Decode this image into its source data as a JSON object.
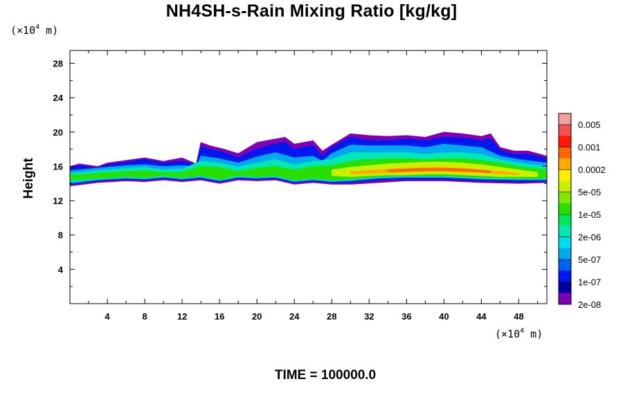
{
  "chart_data": {
    "type": "heatmap",
    "title": "NH4SH-s-Rain Mixing Ratio [kg/kg]",
    "xlabel": "",
    "ylabel": "Height",
    "x_unit": {
      "prefix": "(×10",
      "exp": "4",
      "suffix": " m)"
    },
    "y_unit": {
      "prefix": "(×10",
      "exp": "4",
      "suffix": " m)"
    },
    "xlim": [
      0,
      51
    ],
    "ylim": [
      0,
      29.5
    ],
    "x_ticks": [
      4,
      8,
      12,
      16,
      20,
      24,
      28,
      32,
      36,
      40,
      44,
      48
    ],
    "y_ticks": [
      4,
      8,
      12,
      16,
      20,
      24,
      28
    ],
    "colorbar": {
      "labels": [
        "0.005",
        "0.001",
        "0.0002",
        "5e-05",
        "1e-05",
        "2e-06",
        "5e-07",
        "1e-07",
        "2e-08"
      ],
      "colors": [
        "#f4a0a0",
        "#f45050",
        "#ff1a00",
        "#ff6600",
        "#ffaa00",
        "#ffee00",
        "#c8f000",
        "#80e800",
        "#28e000",
        "#00e85a",
        "#00e8b4",
        "#00dcf0",
        "#00a8f0",
        "#0060f0",
        "#0018f0",
        "#0000a0",
        "#8000b4"
      ]
    },
    "field_layers": [
      {
        "level": 0,
        "top": [
          [
            0,
            16.0
          ],
          [
            1,
            16.3
          ],
          [
            3,
            16.0
          ],
          [
            4,
            16.4
          ],
          [
            6,
            16.7
          ],
          [
            8,
            17.0
          ],
          [
            10,
            16.6
          ],
          [
            12,
            17.0
          ],
          [
            13.5,
            16.3
          ],
          [
            14,
            18.8
          ],
          [
            15,
            18.4
          ],
          [
            16.5,
            18.0
          ],
          [
            18,
            17.5
          ],
          [
            20,
            18.8
          ],
          [
            22,
            19.2
          ],
          [
            23,
            19.4
          ],
          [
            24,
            18.6
          ],
          [
            26,
            19.0
          ],
          [
            27,
            17.8
          ],
          [
            28,
            18.5
          ],
          [
            30,
            19.8
          ],
          [
            32,
            19.6
          ],
          [
            34,
            19.5
          ],
          [
            36,
            19.6
          ],
          [
            38,
            19.4
          ],
          [
            40,
            20.0
          ],
          [
            42,
            19.8
          ],
          [
            44,
            19.5
          ],
          [
            45,
            19.8
          ],
          [
            46,
            18.2
          ],
          [
            47.5,
            17.8
          ],
          [
            49,
            17.8
          ],
          [
            51,
            17.2
          ]
        ],
        "bottom": [
          [
            0,
            13.7
          ],
          [
            3,
            14.1
          ],
          [
            6,
            14.3
          ],
          [
            8,
            14.2
          ],
          [
            10,
            14.4
          ],
          [
            12,
            14.2
          ],
          [
            14,
            14.4
          ],
          [
            16,
            14.0
          ],
          [
            18,
            14.4
          ],
          [
            20,
            14.3
          ],
          [
            22,
            14.4
          ],
          [
            24,
            13.9
          ],
          [
            26,
            14.1
          ],
          [
            28,
            13.9
          ],
          [
            30,
            13.9
          ],
          [
            33,
            14.1
          ],
          [
            36,
            14.3
          ],
          [
            40,
            14.3
          ],
          [
            44,
            14.1
          ],
          [
            48,
            14.0
          ],
          [
            51,
            14.1
          ]
        ]
      },
      {
        "level": 2,
        "top": [
          [
            0,
            15.8
          ],
          [
            1,
            16.1
          ],
          [
            3,
            15.8
          ],
          [
            4,
            16.2
          ],
          [
            6,
            16.5
          ],
          [
            8,
            16.8
          ],
          [
            10,
            16.4
          ],
          [
            12,
            16.6
          ],
          [
            13.5,
            16.2
          ],
          [
            14,
            18.3
          ],
          [
            15,
            18.0
          ],
          [
            16.5,
            17.6
          ],
          [
            18,
            17.0
          ],
          [
            20,
            18.0
          ],
          [
            22,
            18.6
          ],
          [
            23,
            18.8
          ],
          [
            24,
            18.0
          ],
          [
            26,
            18.4
          ],
          [
            27,
            17.2
          ],
          [
            28,
            18.2
          ],
          [
            30,
            19.4
          ],
          [
            32,
            19.0
          ],
          [
            34,
            19.0
          ],
          [
            36,
            19.2
          ],
          [
            38,
            19.0
          ],
          [
            40,
            19.4
          ],
          [
            42,
            19.3
          ],
          [
            44,
            19.0
          ],
          [
            45,
            19.2
          ],
          [
            46,
            17.9
          ],
          [
            47.5,
            17.4
          ],
          [
            49,
            17.4
          ],
          [
            51,
            16.9
          ]
        ],
        "bottom": [
          [
            0,
            13.9
          ],
          [
            3,
            14.3
          ],
          [
            6,
            14.5
          ],
          [
            8,
            14.4
          ],
          [
            10,
            14.6
          ],
          [
            12,
            14.4
          ],
          [
            14,
            14.6
          ],
          [
            16,
            14.2
          ],
          [
            18,
            14.6
          ],
          [
            20,
            14.5
          ],
          [
            22,
            14.6
          ],
          [
            24,
            14.1
          ],
          [
            26,
            14.3
          ],
          [
            28,
            14.1
          ],
          [
            30,
            14.1
          ],
          [
            33,
            14.4
          ],
          [
            36,
            14.5
          ],
          [
            40,
            14.5
          ],
          [
            44,
            14.3
          ],
          [
            48,
            14.2
          ],
          [
            51,
            14.3
          ]
        ]
      },
      {
        "level": 4,
        "top": [
          [
            0,
            15.5
          ],
          [
            2,
            15.7
          ],
          [
            4,
            15.9
          ],
          [
            6,
            16.1
          ],
          [
            8,
            16.2
          ],
          [
            10,
            16.0
          ],
          [
            12,
            16.1
          ],
          [
            13.5,
            15.9
          ],
          [
            14,
            17.2
          ],
          [
            16,
            16.9
          ],
          [
            18,
            16.4
          ],
          [
            20,
            17.1
          ],
          [
            22,
            17.6
          ],
          [
            24,
            17.0
          ],
          [
            26,
            17.2
          ],
          [
            27,
            16.6
          ],
          [
            28,
            17.5
          ],
          [
            30,
            18.5
          ],
          [
            32,
            18.4
          ],
          [
            34,
            18.4
          ],
          [
            36,
            18.4
          ],
          [
            38,
            18.2
          ],
          [
            40,
            18.6
          ],
          [
            42,
            18.4
          ],
          [
            44,
            18.2
          ],
          [
            46,
            17.2
          ],
          [
            48,
            16.8
          ],
          [
            51,
            16.4
          ]
        ],
        "bottom": [
          [
            0,
            14.0
          ],
          [
            3,
            14.4
          ],
          [
            6,
            14.6
          ],
          [
            8,
            14.5
          ],
          [
            10,
            14.7
          ],
          [
            12,
            14.5
          ],
          [
            14,
            14.7
          ],
          [
            16,
            14.3
          ],
          [
            18,
            14.7
          ],
          [
            20,
            14.6
          ],
          [
            22,
            14.7
          ],
          [
            24,
            14.2
          ],
          [
            26,
            14.4
          ],
          [
            28,
            14.2
          ],
          [
            30,
            14.3
          ],
          [
            33,
            14.6
          ],
          [
            36,
            14.7
          ],
          [
            40,
            14.7
          ],
          [
            44,
            14.5
          ],
          [
            48,
            14.4
          ],
          [
            51,
            14.4
          ]
        ]
      },
      {
        "level": 6,
        "top": [
          [
            0,
            15.2
          ],
          [
            2,
            15.4
          ],
          [
            4,
            15.6
          ],
          [
            6,
            15.8
          ],
          [
            8,
            15.9
          ],
          [
            10,
            15.6
          ],
          [
            12,
            15.7
          ],
          [
            14,
            16.6
          ],
          [
            16,
            16.4
          ],
          [
            18,
            15.9
          ],
          [
            20,
            16.4
          ],
          [
            22,
            16.8
          ],
          [
            24,
            16.2
          ],
          [
            26,
            16.6
          ],
          [
            28,
            16.8
          ],
          [
            30,
            17.6
          ],
          [
            32,
            17.6
          ],
          [
            34,
            17.6
          ],
          [
            36,
            17.6
          ],
          [
            38,
            17.4
          ],
          [
            40,
            17.6
          ],
          [
            42,
            17.6
          ],
          [
            44,
            17.4
          ],
          [
            46,
            16.8
          ],
          [
            48,
            16.4
          ],
          [
            51,
            16.0
          ]
        ],
        "bottom": [
          [
            0,
            14.2
          ],
          [
            3,
            14.5
          ],
          [
            6,
            14.7
          ],
          [
            8,
            14.6
          ],
          [
            10,
            14.8
          ],
          [
            12,
            14.6
          ],
          [
            14,
            14.8
          ],
          [
            16,
            14.4
          ],
          [
            18,
            14.8
          ],
          [
            20,
            14.7
          ],
          [
            22,
            14.8
          ],
          [
            24,
            14.3
          ],
          [
            26,
            14.5
          ],
          [
            28,
            14.3
          ],
          [
            30,
            14.4
          ],
          [
            33,
            14.7
          ],
          [
            36,
            14.8
          ],
          [
            40,
            14.8
          ],
          [
            44,
            14.6
          ],
          [
            48,
            14.5
          ],
          [
            51,
            14.5
          ]
        ]
      },
      {
        "level": 8,
        "top": [
          [
            0,
            15.0
          ],
          [
            2,
            15.1
          ],
          [
            4,
            15.3
          ],
          [
            6,
            15.4
          ],
          [
            8,
            15.5
          ],
          [
            10,
            15.3
          ],
          [
            12,
            15.3
          ],
          [
            14,
            16.0
          ],
          [
            16,
            15.9
          ],
          [
            18,
            15.4
          ],
          [
            20,
            15.8
          ],
          [
            22,
            16.0
          ],
          [
            24,
            15.6
          ],
          [
            26,
            16.0
          ],
          [
            28,
            16.1
          ],
          [
            30,
            16.6
          ],
          [
            32,
            16.8
          ],
          [
            34,
            16.9
          ],
          [
            36,
            16.9
          ],
          [
            38,
            16.8
          ],
          [
            40,
            16.9
          ],
          [
            42,
            16.9
          ],
          [
            44,
            16.7
          ],
          [
            46,
            16.4
          ],
          [
            48,
            16.0
          ],
          [
            51,
            15.6
          ]
        ],
        "bottom": [
          [
            0,
            14.4
          ],
          [
            3,
            14.6
          ],
          [
            6,
            14.8
          ],
          [
            8,
            14.7
          ],
          [
            10,
            14.9
          ],
          [
            12,
            14.7
          ],
          [
            14,
            14.9
          ],
          [
            16,
            14.5
          ],
          [
            18,
            14.9
          ],
          [
            20,
            14.8
          ],
          [
            22,
            14.9
          ],
          [
            24,
            14.4
          ],
          [
            26,
            14.6
          ],
          [
            28,
            14.4
          ],
          [
            30,
            14.5
          ],
          [
            33,
            14.8
          ],
          [
            36,
            14.9
          ],
          [
            40,
            14.9
          ],
          [
            44,
            14.7
          ],
          [
            48,
            14.6
          ],
          [
            51,
            14.6
          ]
        ]
      },
      {
        "level": 10,
        "top": [
          [
            28,
            15.6
          ],
          [
            30,
            15.9
          ],
          [
            32,
            16.1
          ],
          [
            34,
            16.3
          ],
          [
            36,
            16.4
          ],
          [
            38,
            16.5
          ],
          [
            40,
            16.5
          ],
          [
            42,
            16.4
          ],
          [
            44,
            16.2
          ],
          [
            46,
            15.9
          ],
          [
            48,
            15.6
          ],
          [
            50,
            15.3
          ]
        ],
        "bottom": [
          [
            28,
            14.9
          ],
          [
            30,
            14.8
          ],
          [
            32,
            14.9
          ],
          [
            34,
            15.0
          ],
          [
            36,
            15.0
          ],
          [
            38,
            15.1
          ],
          [
            40,
            15.1
          ],
          [
            42,
            15.0
          ],
          [
            44,
            14.9
          ],
          [
            46,
            14.8
          ],
          [
            48,
            14.8
          ],
          [
            50,
            14.8
          ]
        ]
      },
      {
        "level": 12,
        "top": [
          [
            30,
            15.4
          ],
          [
            33,
            15.6
          ],
          [
            36,
            15.8
          ],
          [
            39,
            15.9
          ],
          [
            42,
            15.8
          ],
          [
            45,
            15.5
          ],
          [
            48,
            15.2
          ]
        ],
        "bottom": [
          [
            30,
            15.1
          ],
          [
            33,
            15.2
          ],
          [
            36,
            15.3
          ],
          [
            39,
            15.4
          ],
          [
            42,
            15.3
          ],
          [
            45,
            15.2
          ],
          [
            48,
            15.0
          ]
        ]
      },
      {
        "level": 13,
        "top": [
          [
            34,
            15.6
          ],
          [
            37,
            15.75
          ],
          [
            40,
            15.8
          ],
          [
            43,
            15.65
          ],
          [
            45,
            15.45
          ]
        ],
        "bottom": [
          [
            34,
            15.35
          ],
          [
            37,
            15.45
          ],
          [
            40,
            15.5
          ],
          [
            43,
            15.4
          ],
          [
            45,
            15.25
          ]
        ]
      }
    ]
  },
  "time_label": "TIME = 100000.0"
}
